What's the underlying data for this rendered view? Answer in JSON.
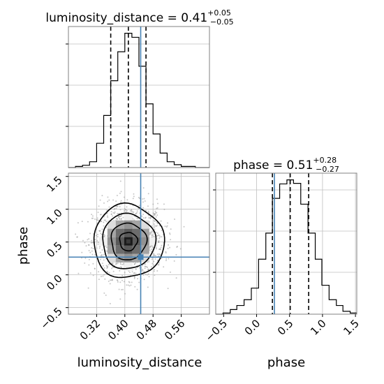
{
  "chart_data": {
    "type": "corner",
    "parameters": [
      "luminosity_distance",
      "phase"
    ],
    "truths": {
      "luminosity_distance": 0.445,
      "phase": 0.27
    },
    "grid": true,
    "marginals": [
      {
        "parameter": "luminosity_distance",
        "title_name": "luminosity_distance",
        "median": "0.41",
        "plus": "+0.05",
        "minus": "−0.05",
        "quantiles": [
          0.36,
          0.41,
          0.46
        ],
        "xlim": [
          0.24,
          0.64
        ],
        "bins": [
          0.24,
          0.26,
          0.28,
          0.3,
          0.32,
          0.34,
          0.36,
          0.38,
          0.4,
          0.42,
          0.44,
          0.46,
          0.48,
          0.5,
          0.52,
          0.54,
          0.56,
          0.58,
          0.6,
          0.62,
          0.64
        ],
        "counts": [
          0,
          2,
          4,
          10,
          42,
          90,
          150,
          200,
          232,
          225,
          175,
          110,
          58,
          25,
          10,
          5,
          2,
          2,
          0,
          0
        ]
      },
      {
        "parameter": "phase",
        "title_name": "phase",
        "median": "0.51",
        "plus": "+0.28",
        "minus": "−0.27",
        "quantiles": [
          0.24,
          0.51,
          0.79
        ],
        "xlim": [
          -0.62,
          1.52
        ],
        "xticks": [
          "−0.5",
          "0.0",
          "0.5",
          "1.0",
          "1.5"
        ],
        "xtick_values": [
          -0.5,
          0.0,
          0.5,
          1.0,
          1.5
        ],
        "xlabel": "phase",
        "bins": [
          -0.62,
          -0.51,
          -0.4,
          -0.3,
          -0.19,
          -0.08,
          0.03,
          0.14,
          0.24,
          0.35,
          0.46,
          0.56,
          0.67,
          0.78,
          0.89,
          0.99,
          1.1,
          1.21,
          1.31,
          1.42,
          1.52
        ],
        "counts": [
          0,
          2,
          8,
          15,
          25,
          45,
          95,
          140,
          200,
          225,
          232,
          226,
          190,
          140,
          95,
          50,
          25,
          15,
          5,
          2
        ]
      }
    ],
    "joint": {
      "x": "luminosity_distance",
      "y": "phase",
      "xlim": [
        0.24,
        0.64
      ],
      "ylim": [
        -0.6,
        1.55
      ],
      "xticks": [
        "0.32",
        "0.40",
        "0.48",
        "0.56"
      ],
      "xtick_values": [
        0.32,
        0.4,
        0.48,
        0.56
      ],
      "yticks": [
        "−0.5",
        "0.0",
        "0.5",
        "1.0",
        "1.5"
      ],
      "ytick_values": [
        -0.5,
        0.0,
        0.5,
        1.0,
        1.5
      ],
      "xlabel": "luminosity_distance",
      "ylabel": "phase",
      "center": [
        0.41,
        0.51
      ],
      "spread": [
        0.05,
        0.28
      ]
    }
  }
}
